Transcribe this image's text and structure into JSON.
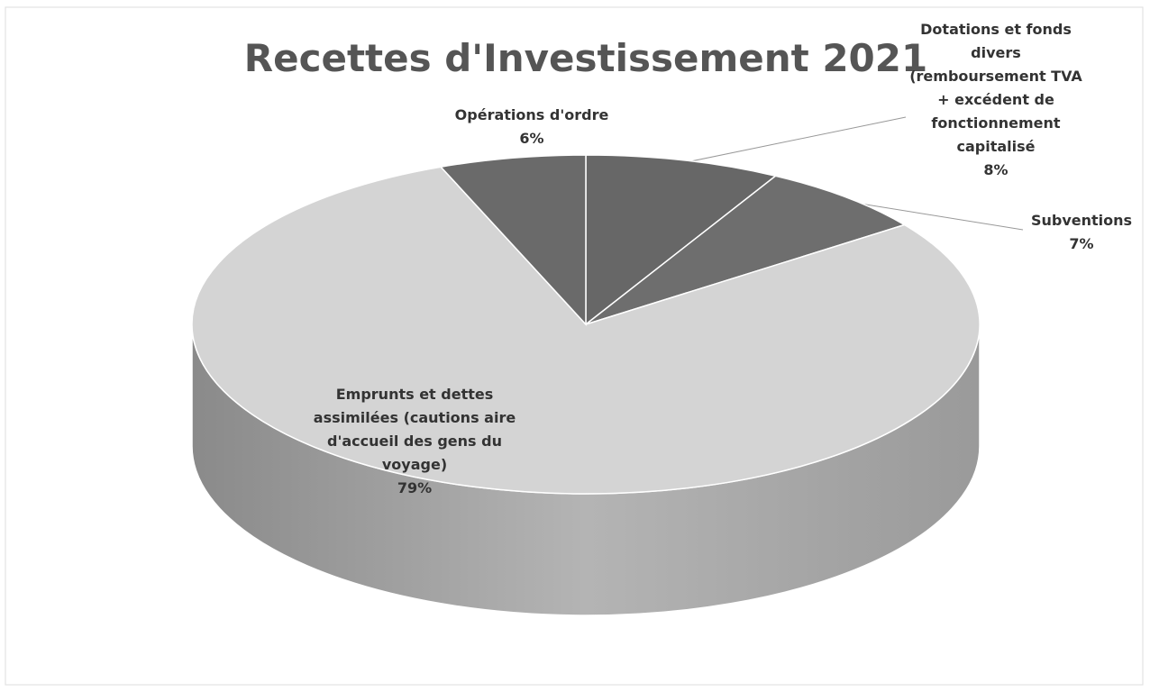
{
  "chart_data": {
    "type": "pie3d",
    "title": "Recettes d'Investissement 2021",
    "categories": [
      "Dotations et fonds divers (remboursement TVA + excédent de fonctionnement capitalisé",
      "Subventions",
      "Emprunts et dettes assimilées (cautions aire d'accueil des gens du voyage)",
      "Opérations d'ordre"
    ],
    "values": [
      8,
      7,
      79,
      6
    ],
    "value_labels": [
      "8%",
      "7%",
      "79%",
      "6%"
    ],
    "colors": [
      "#676767",
      "#6e6e6e",
      "#d4d4d4",
      "#6a6a6a"
    ]
  }
}
